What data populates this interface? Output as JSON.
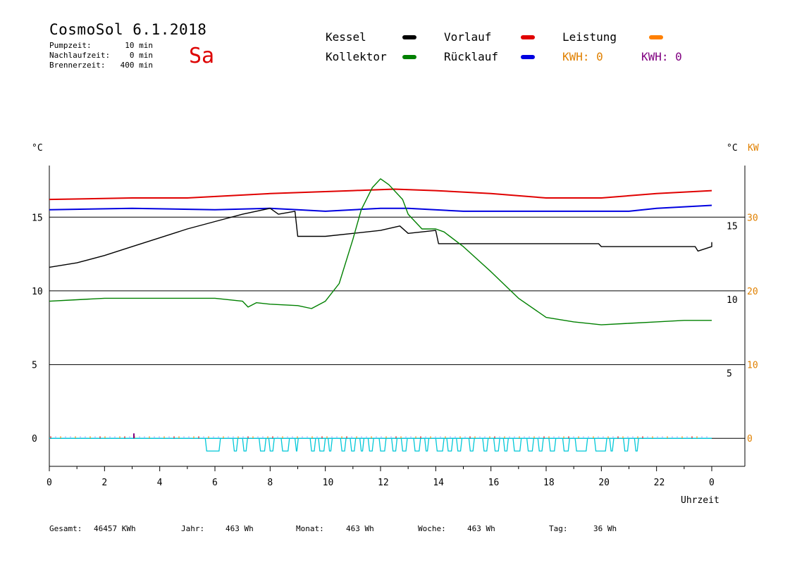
{
  "header": {
    "title": "CosmoSol 6.1.2018",
    "weekday": "Sa",
    "info": [
      {
        "label": "Pumpzeit:",
        "value": "10 min"
      },
      {
        "label": "Nachlaufzeit:",
        "value": "0 min"
      },
      {
        "label": "Brennerzeit:",
        "value": "400 min"
      }
    ]
  },
  "legend": {
    "kessel": {
      "label": "Kessel",
      "color": "#000000"
    },
    "kollektor": {
      "label": "Kollektor",
      "color": "#008000"
    },
    "vorlauf": {
      "label": "Vorlauf",
      "color": "#e00000"
    },
    "ruecklauf": {
      "label": "Rücklauf",
      "color": "#0000e0"
    },
    "leistung": {
      "label": "Leistung",
      "color": "#ff8000"
    },
    "kwh_orange": {
      "label": "KWH: 0",
      "color": "#e08000"
    },
    "kwh_purple": {
      "label": "KWH: 0",
      "color": "#800080"
    }
  },
  "footer": [
    {
      "label": "Gesamt:",
      "value": "46457 KWh"
    },
    {
      "label": "Jahr:",
      "value": "463 Wh"
    },
    {
      "label": "Monat:",
      "value": "463 Wh"
    },
    {
      "label": "Woche:",
      "value": "463 Wh"
    },
    {
      "label": "Tag:",
      "value": "36 Wh"
    }
  ],
  "chart_data": {
    "type": "line",
    "xlabel": "Uhrzeit",
    "xlim": [
      0,
      24
    ],
    "x_ticks": [
      "0",
      "2",
      "4",
      "6",
      "8",
      "10",
      "12",
      "14",
      "16",
      "18",
      "20",
      "22",
      "0"
    ],
    "y_left": {
      "label": "°C",
      "ticks": [
        "15",
        "10",
        "5",
        "0"
      ],
      "range": [
        -1.9,
        18.5
      ]
    },
    "y_right_inner": {
      "label": "°C",
      "ticks": [
        "15",
        "10",
        "5"
      ]
    },
    "y_right_kw": {
      "label": "KW",
      "ticks": [
        "30",
        "20",
        "10",
        "0"
      ],
      "color": "#e08000"
    },
    "gridlines": [
      0,
      5,
      10,
      15
    ],
    "series": [
      {
        "name": "Vorlauf",
        "color": "#e00000",
        "points": [
          [
            0,
            16.2
          ],
          [
            3,
            16.3
          ],
          [
            5,
            16.3
          ],
          [
            8,
            16.6
          ],
          [
            11,
            16.8
          ],
          [
            12.5,
            16.9
          ],
          [
            14,
            16.8
          ],
          [
            16,
            16.6
          ],
          [
            18,
            16.3
          ],
          [
            20,
            16.3
          ],
          [
            22,
            16.6
          ],
          [
            24,
            16.8
          ]
        ]
      },
      {
        "name": "Rücklauf",
        "color": "#0000e0",
        "points": [
          [
            0,
            15.5
          ],
          [
            3,
            15.6
          ],
          [
            6,
            15.5
          ],
          [
            8,
            15.6
          ],
          [
            9,
            15.5
          ],
          [
            10,
            15.4
          ],
          [
            12,
            15.6
          ],
          [
            13,
            15.6
          ],
          [
            15,
            15.4
          ],
          [
            18,
            15.4
          ],
          [
            21,
            15.4
          ],
          [
            22,
            15.6
          ],
          [
            24,
            15.8
          ]
        ]
      },
      {
        "name": "Kessel",
        "color": "#000000",
        "points": [
          [
            0,
            11.6
          ],
          [
            1,
            11.9
          ],
          [
            2,
            12.4
          ],
          [
            3,
            13.0
          ],
          [
            4,
            13.6
          ],
          [
            5,
            14.2
          ],
          [
            6,
            14.7
          ],
          [
            7,
            15.2
          ],
          [
            8,
            15.6
          ],
          [
            8.3,
            15.2
          ],
          [
            8.9,
            15.4
          ],
          [
            9.0,
            13.7
          ],
          [
            10,
            13.7
          ],
          [
            11,
            13.9
          ],
          [
            12,
            14.1
          ],
          [
            12.7,
            14.4
          ],
          [
            13,
            13.9
          ],
          [
            14,
            14.1
          ],
          [
            14.1,
            13.2
          ],
          [
            16,
            13.2
          ],
          [
            18,
            13.2
          ],
          [
            19.9,
            13.2
          ],
          [
            20,
            13.0
          ],
          [
            23.4,
            13.0
          ],
          [
            23.5,
            12.7
          ],
          [
            24,
            13.0
          ],
          [
            24,
            13.3
          ]
        ]
      },
      {
        "name": "Kollektor",
        "color": "#008000",
        "points": [
          [
            0,
            9.3
          ],
          [
            1,
            9.4
          ],
          [
            2,
            9.5
          ],
          [
            4,
            9.5
          ],
          [
            6,
            9.5
          ],
          [
            7,
            9.3
          ],
          [
            7.2,
            8.9
          ],
          [
            7.5,
            9.2
          ],
          [
            8,
            9.1
          ],
          [
            9,
            9.0
          ],
          [
            9.5,
            8.8
          ],
          [
            10,
            9.3
          ],
          [
            10.5,
            10.5
          ],
          [
            11,
            13.5
          ],
          [
            11.3,
            15.5
          ],
          [
            11.7,
            17.0
          ],
          [
            12,
            17.6
          ],
          [
            12.3,
            17.2
          ],
          [
            12.8,
            16.2
          ],
          [
            13,
            15.2
          ],
          [
            13.5,
            14.2
          ],
          [
            14,
            14.2
          ],
          [
            14.3,
            14.0
          ],
          [
            15,
            13.0
          ],
          [
            16,
            11.3
          ],
          [
            17,
            9.5
          ],
          [
            18,
            8.2
          ],
          [
            19,
            7.9
          ],
          [
            20,
            7.7
          ],
          [
            21,
            7.8
          ],
          [
            22,
            7.9
          ],
          [
            23,
            8.0
          ],
          [
            24,
            8.0
          ]
        ]
      }
    ]
  }
}
